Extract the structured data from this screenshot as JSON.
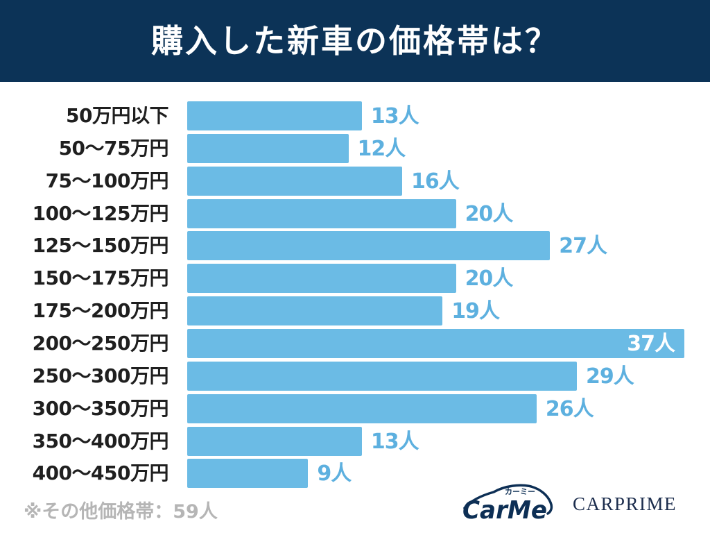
{
  "chart_data": {
    "type": "bar",
    "orientation": "horizontal",
    "title": "購入した新車の価格帯は？",
    "categories": [
      "50万円以下",
      "50～75万円",
      "75～100万円",
      "100～125万円",
      "125～150万円",
      "150～175万円",
      "175～200万円",
      "200～250万円",
      "250～300万円",
      "300～350万円",
      "350～400万円",
      "400～450万円"
    ],
    "values": [
      13,
      12,
      16,
      20,
      27,
      20,
      19,
      37,
      29,
      26,
      13,
      9
    ],
    "value_suffix": "人",
    "grid": false
  },
  "footnote": "※その他価格帯：59人",
  "logos": {
    "carme": {
      "wordmark": "CarMe",
      "kana": "カーミー"
    },
    "carprime": "CARPRIME"
  },
  "colors": {
    "header_bg": "#0c3357",
    "title_text": "#ffffff",
    "bar": "#6bbbe5",
    "value_label": "#5db0df",
    "value_label_inside": "#ffffff",
    "category_text": "#1f1f1f",
    "footnote": "#b5b5b5",
    "carme_logo": "#0d2f55",
    "carprime_logo": "#1c2d4d"
  }
}
